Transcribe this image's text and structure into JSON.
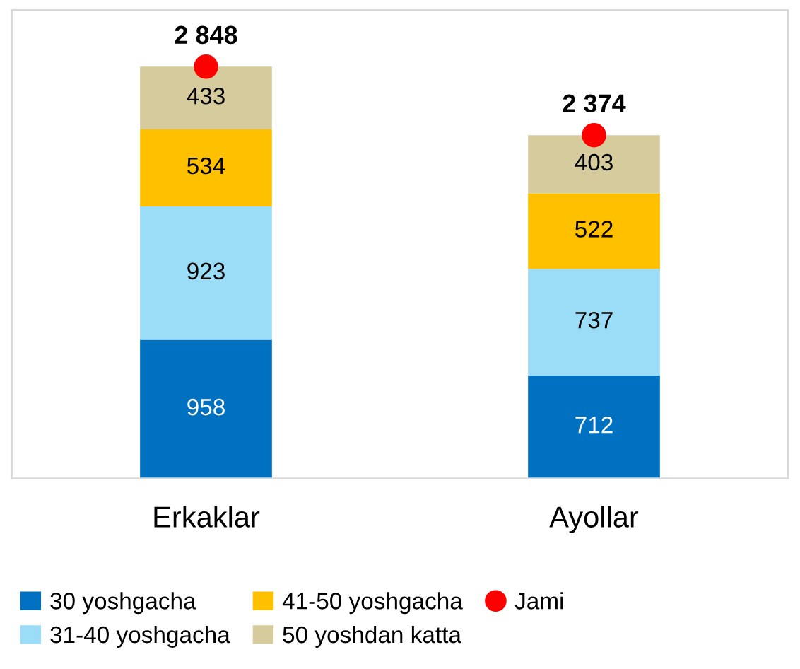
{
  "chart_data": {
    "type": "bar",
    "stacked": true,
    "categories": [
      "Erkaklar",
      "Ayollar"
    ],
    "series": [
      {
        "name": "30 yoshgacha",
        "color": "#0070c0",
        "values": [
          958,
          712
        ]
      },
      {
        "name": "31-40 yoshgacha",
        "color": "#9bdcf7",
        "values": [
          923,
          737
        ]
      },
      {
        "name": "41-50 yoshgacha",
        "color": "#ffc000",
        "values": [
          534,
          522
        ]
      },
      {
        "name": "50 yoshdan katta",
        "color": "#d5cb9c",
        "values": [
          433,
          403
        ]
      },
      {
        "name": "Jami",
        "type": "scatter",
        "color": "#ff0000",
        "x": [
          "Erkaklar",
          "Ayollar"
        ],
        "values": [
          2848,
          2374
        ],
        "value_labels": [
          "2 848",
          "2 374"
        ],
        "marker": "circle"
      }
    ],
    "data_labels": true,
    "ylim": [
      0,
      3240
    ],
    "tick_labels": "x",
    "legend": "bottom",
    "grid": false
  }
}
